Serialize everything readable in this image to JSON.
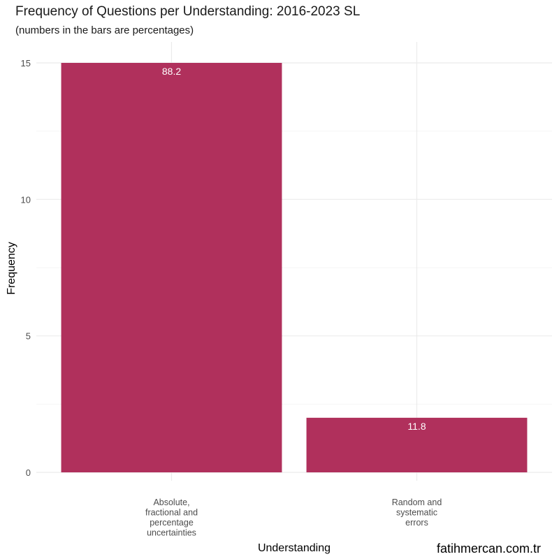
{
  "chart_data": {
    "type": "bar",
    "title": "Frequency of Questions per Understanding: 2016-2023 SL",
    "subtitle": "(numbers in the bars are percentages)",
    "xlabel": "Understanding",
    "ylabel": "Frequency",
    "categories": [
      [
        "Absolute,",
        "fractional and",
        "percentage",
        "uncertainties"
      ],
      [
        "Random and",
        "systematic",
        "errors"
      ]
    ],
    "values": [
      15,
      2
    ],
    "bar_labels": [
      "88.2",
      "11.8"
    ],
    "ylim": [
      0,
      15.5
    ],
    "yticks": [
      0,
      5,
      10,
      15
    ],
    "grid": true,
    "legend": "none"
  },
  "colors": {
    "bar": "#b0305c",
    "bar_label": "#ffffff",
    "grid_major": "#ebebeb",
    "grid_minor": "#f4f4f4",
    "tick_text": "#4d4d4d"
  },
  "watermark": "fatihmercan.com.tr"
}
